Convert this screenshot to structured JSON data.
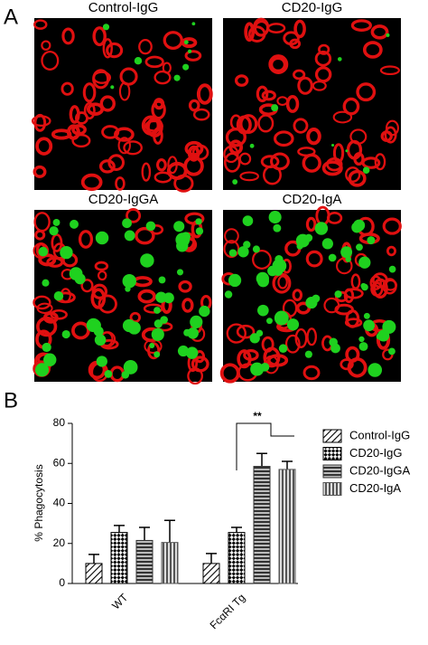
{
  "panels": {
    "a": {
      "label": "A",
      "images": [
        "Control-IgG",
        "CD20-IgG",
        "CD20-IgGA",
        "CD20-IgA"
      ]
    },
    "b": {
      "label": "B"
    }
  },
  "chart_data": {
    "type": "bar",
    "y_label": "% Phagocytosis",
    "categories": [
      "WT",
      "FcαRI Tg"
    ],
    "series": [
      {
        "name": "Control-IgG",
        "color": "#000000",
        "pattern": "diagonal",
        "values": [
          10,
          10
        ],
        "errors": [
          4.5,
          5
        ]
      },
      {
        "name": "CD20-IgG",
        "color": "#000000",
        "pattern": "checker",
        "values": [
          25.5,
          25.5
        ],
        "errors": [
          3.5,
          2.5
        ]
      },
      {
        "name": "CD20-IgGA",
        "color": "#333333",
        "pattern": "horizontal",
        "values": [
          21.5,
          58.5
        ],
        "errors": [
          6.5,
          6.5
        ]
      },
      {
        "name": "CD20-IgA",
        "color": "#555555",
        "pattern": "vertical",
        "values": [
          20.5,
          57
        ],
        "errors": [
          11,
          4
        ]
      }
    ],
    "ylim": [
      0,
      80
    ],
    "yticks": [
      0,
      20,
      40,
      60,
      80
    ],
    "annotation": "**"
  }
}
